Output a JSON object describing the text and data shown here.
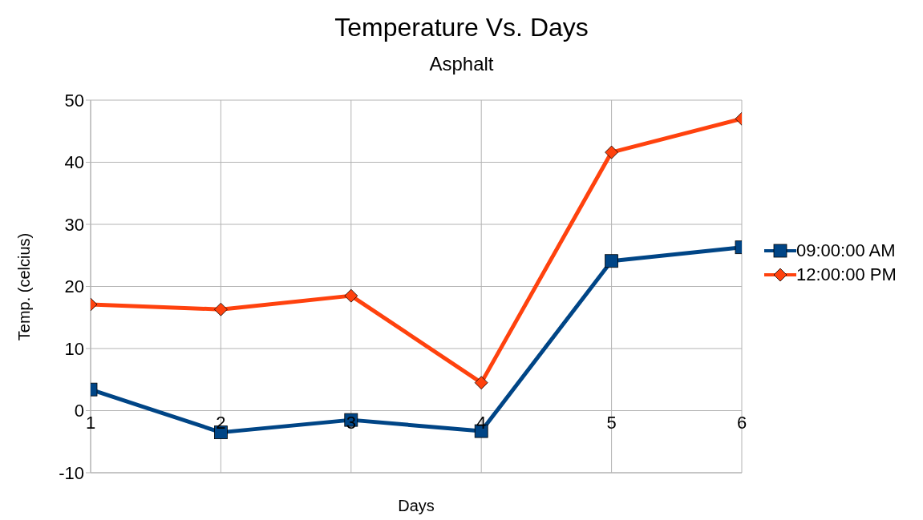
{
  "chart_data": {
    "type": "line",
    "title": "Temperature Vs. Days",
    "subtitle": "Asphalt",
    "xlabel": "Days",
    "ylabel": "Temp. (celcius)",
    "x": [
      1,
      2,
      3,
      4,
      5,
      6
    ],
    "xlim": [
      1,
      6
    ],
    "xticks": [
      1,
      2,
      3,
      4,
      5,
      6
    ],
    "ylim": [
      -10,
      50
    ],
    "yticks": [
      -10,
      0,
      10,
      20,
      30,
      40,
      50
    ],
    "grid": true,
    "legend": "right",
    "line_style": "solid",
    "series": [
      {
        "name": "09:00:00 AM",
        "color": "#004586",
        "marker": "square",
        "values": [
          3.4,
          -3.5,
          -1.5,
          -3.3,
          24.1,
          26.3
        ]
      },
      {
        "name": "12:00:00 PM",
        "color": "#ff420e",
        "marker": "diamond",
        "values": [
          17.1,
          16.3,
          18.5,
          4.5,
          41.6,
          47.0
        ]
      }
    ]
  }
}
